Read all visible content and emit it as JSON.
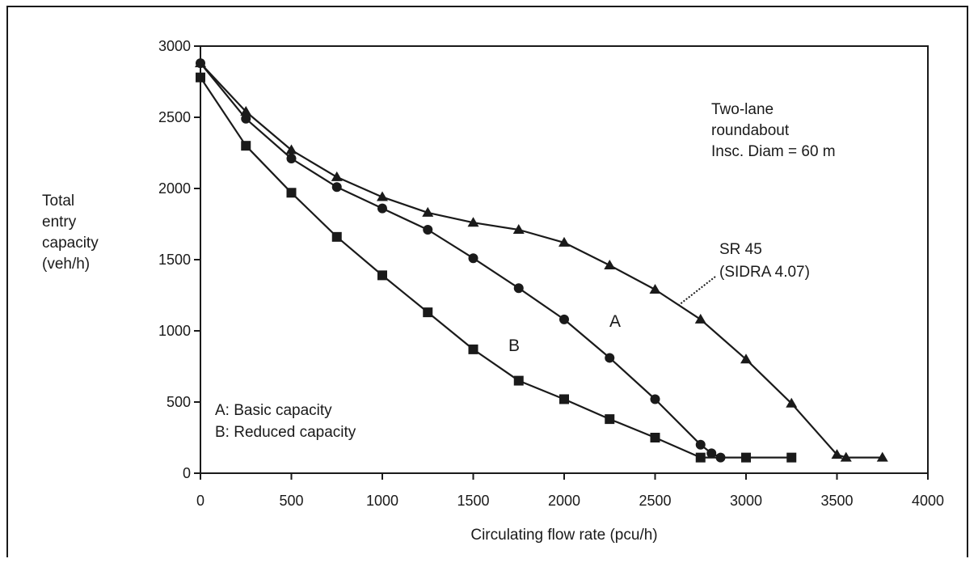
{
  "chart_data": {
    "type": "line",
    "xlabel": "Circulating flow rate (pcu/h)",
    "ylabel_lines": [
      "Total",
      "entry",
      "capacity",
      "(veh/h)"
    ],
    "xlim": [
      0,
      4000
    ],
    "ylim": [
      0,
      3000
    ],
    "x_ticks": [
      0,
      500,
      1000,
      1500,
      2000,
      2500,
      3000,
      3500,
      4000
    ],
    "y_ticks": [
      0,
      500,
      1000,
      1500,
      2000,
      2500,
      3000
    ],
    "grid": false,
    "annotation_lines": [
      "Two-lane",
      "roundabout",
      "Insc. Diam = 60 m"
    ],
    "legend_lines": [
      "A:  Basic capacity",
      "B:  Reduced capacity"
    ],
    "series": [
      {
        "name": "SR 45 (SIDRA 4.07)",
        "label_lines": [
          "SR 45",
          "(SIDRA 4.07)"
        ],
        "marker": "triangle",
        "x": [
          0,
          250,
          500,
          750,
          1000,
          1250,
          1500,
          1750,
          2000,
          2250,
          2500,
          2750,
          3000,
          3250,
          3500,
          3550,
          3750
        ],
        "y": [
          2880,
          2540,
          2270,
          2080,
          1940,
          1830,
          1760,
          1710,
          1620,
          1460,
          1290,
          1080,
          800,
          490,
          130,
          110,
          110
        ]
      },
      {
        "name": "A",
        "label_lines": [
          "A"
        ],
        "marker": "circle",
        "x": [
          0,
          250,
          500,
          750,
          1000,
          1250,
          1500,
          1750,
          2000,
          2250,
          2500,
          2750,
          2810,
          2860
        ],
        "y": [
          2880,
          2490,
          2210,
          2010,
          1860,
          1710,
          1510,
          1300,
          1080,
          810,
          520,
          200,
          140,
          110
        ]
      },
      {
        "name": "B",
        "label_lines": [
          "B"
        ],
        "marker": "square",
        "x": [
          0,
          250,
          500,
          750,
          1000,
          1250,
          1500,
          1750,
          2000,
          2250,
          2500,
          2750,
          3000,
          3250
        ],
        "y": [
          2780,
          2300,
          1970,
          1660,
          1390,
          1130,
          870,
          650,
          520,
          380,
          250,
          110,
          110,
          110
        ]
      }
    ]
  }
}
